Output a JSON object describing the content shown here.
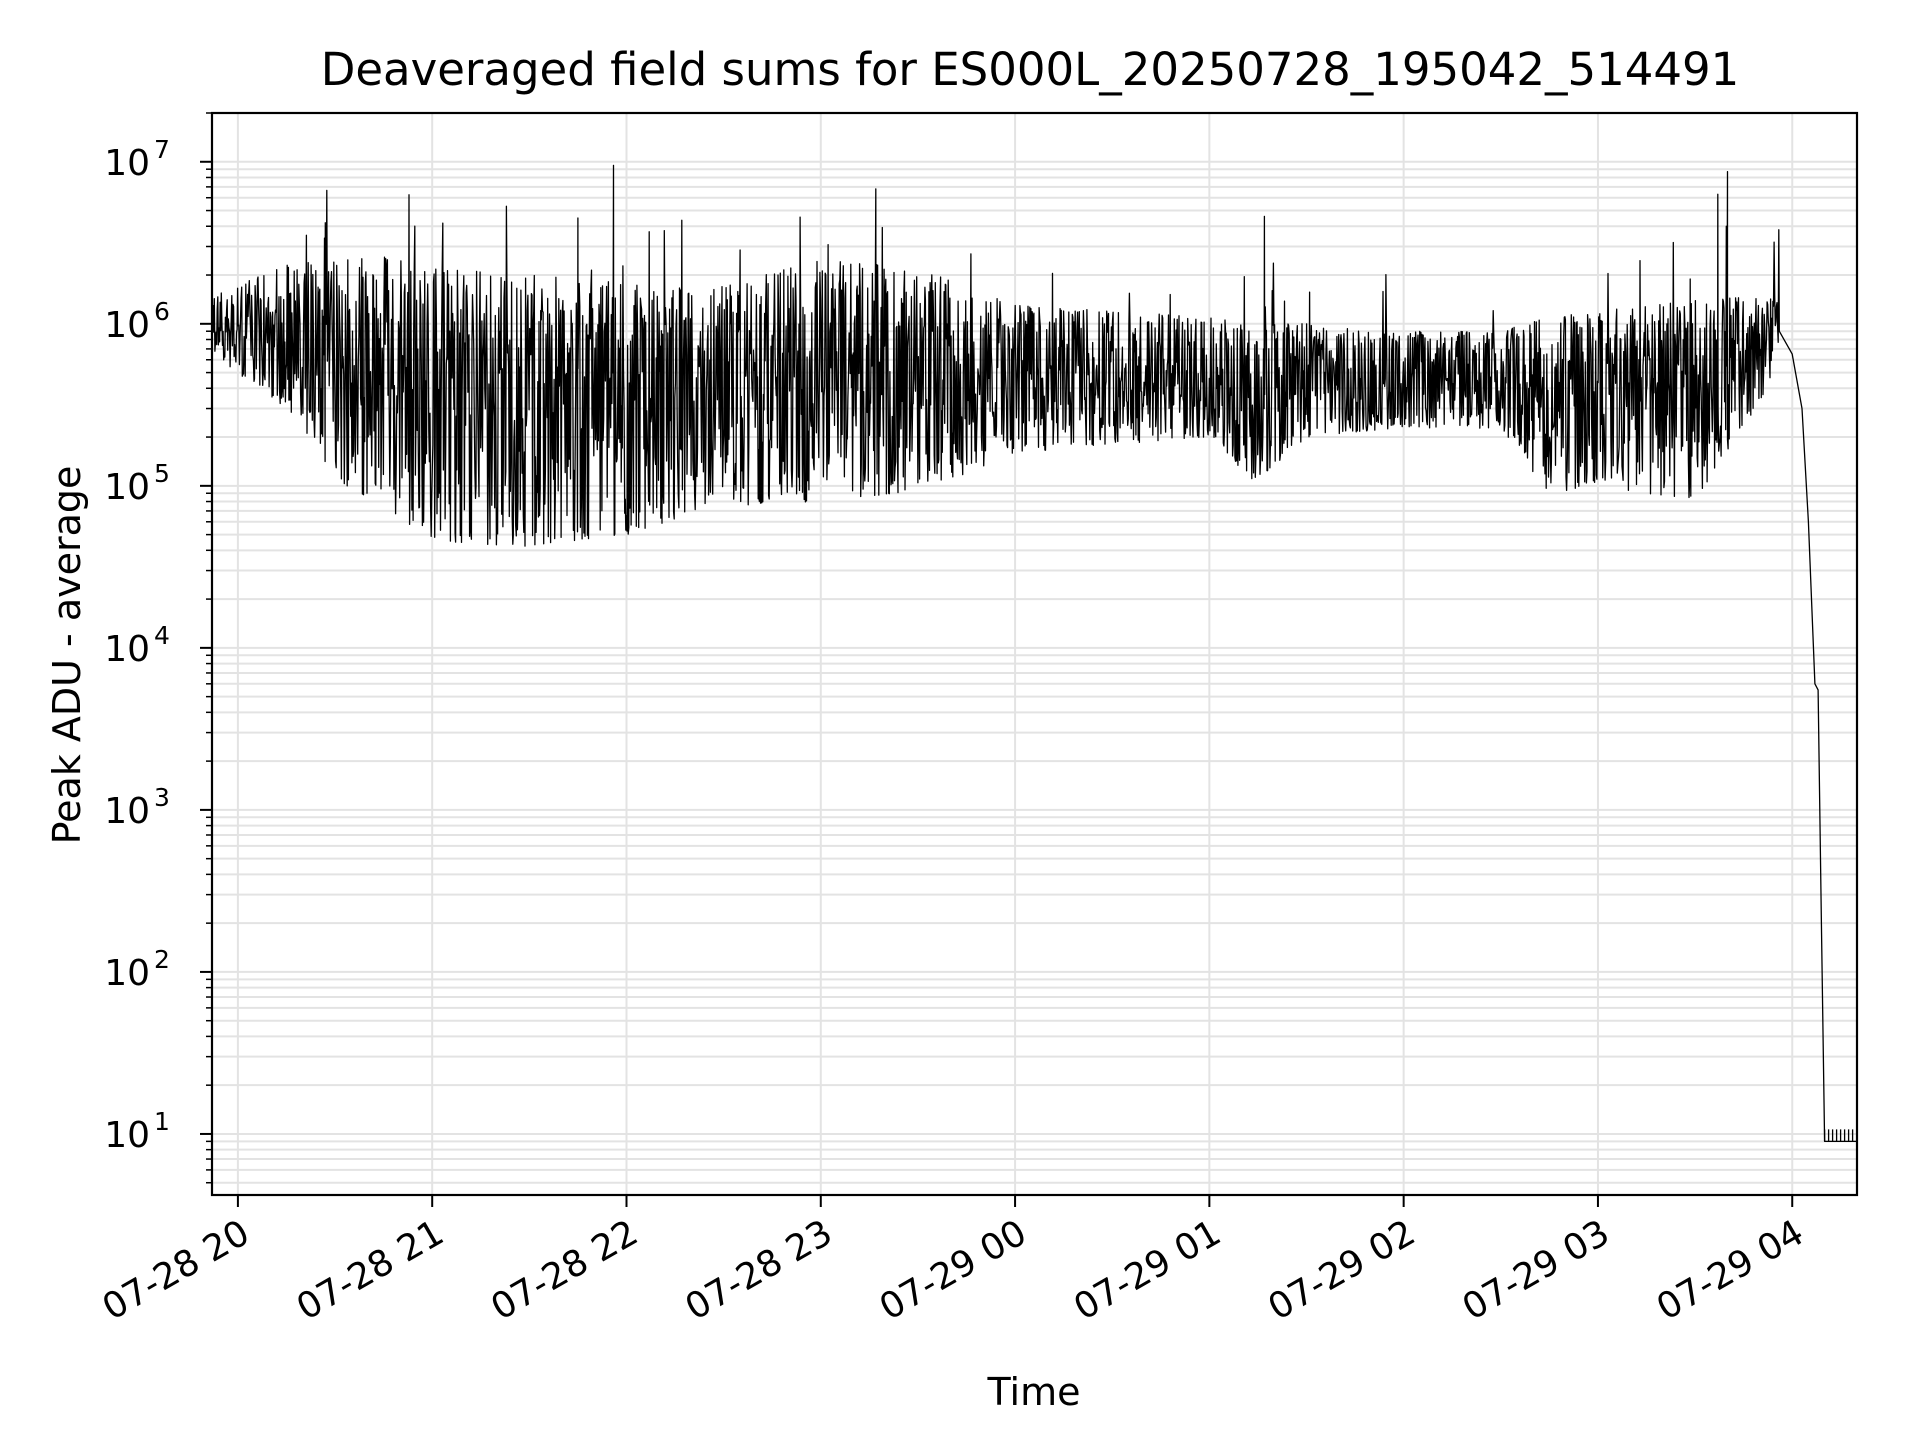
{
  "chart_data": {
    "type": "line",
    "title": "Deaveraged field sums for ES000L_20250728_195042_514491",
    "xlabel": "Time",
    "ylabel": "Peak ADU - average",
    "yscale": "log",
    "xlim": [
      "2025-07-28 19:52",
      "2025-07-29 04:20"
    ],
    "ylim": [
      4.2,
      20000000
    ],
    "x_ticks": [
      {
        "t": "2025-07-28 20:00",
        "label": "07-28 20"
      },
      {
        "t": "2025-07-28 21:00",
        "label": "07-28 21"
      },
      {
        "t": "2025-07-28 22:00",
        "label": "07-28 22"
      },
      {
        "t": "2025-07-28 23:00",
        "label": "07-28 23"
      },
      {
        "t": "2025-07-29 00:00",
        "label": "07-29 00"
      },
      {
        "t": "2025-07-29 01:00",
        "label": "07-29 01"
      },
      {
        "t": "2025-07-29 02:00",
        "label": "07-29 02"
      },
      {
        "t": "2025-07-29 03:00",
        "label": "07-29 03"
      },
      {
        "t": "2025-07-29 04:00",
        "label": "07-29 04"
      }
    ],
    "y_ticks": [
      {
        "value": 10,
        "base": "10",
        "exp": "1"
      },
      {
        "value": 100,
        "base": "10",
        "exp": "2"
      },
      {
        "value": 1000,
        "base": "10",
        "exp": "3"
      },
      {
        "value": 10000,
        "base": "10",
        "exp": "4"
      },
      {
        "value": 100000,
        "base": "10",
        "exp": "5"
      },
      {
        "value": 1000000,
        "base": "10",
        "exp": "6"
      },
      {
        "value": 10000000,
        "base": "10",
        "exp": "7"
      }
    ],
    "grid": true,
    "series": [
      {
        "color": "#000000",
        "x": [
          "2025-07-28 19:52",
          "2025-07-28 20:00",
          "2025-07-28 20:08",
          "2025-07-28 20:15",
          "2025-07-28 20:20",
          "2025-07-28 20:27",
          "2025-07-28 20:33",
          "2025-07-28 20:40",
          "2025-07-28 20:47",
          "2025-07-28 20:53",
          "2025-07-28 21:00",
          "2025-07-28 21:10",
          "2025-07-28 21:20",
          "2025-07-28 21:30",
          "2025-07-28 21:40",
          "2025-07-28 21:50",
          "2025-07-28 22:00",
          "2025-07-28 22:15",
          "2025-07-28 22:30",
          "2025-07-28 22:45",
          "2025-07-28 23:00",
          "2025-07-28 23:07",
          "2025-07-28 23:15",
          "2025-07-28 23:30",
          "2025-07-28 23:45",
          "2025-07-29 00:00",
          "2025-07-29 00:15",
          "2025-07-29 00:30",
          "2025-07-29 00:45",
          "2025-07-29 01:00",
          "2025-07-29 01:13",
          "2025-07-29 01:20",
          "2025-07-29 01:30",
          "2025-07-29 01:45",
          "2025-07-29 02:00",
          "2025-07-29 02:15",
          "2025-07-29 02:30",
          "2025-07-29 02:45",
          "2025-07-29 03:00",
          "2025-07-29 03:15",
          "2025-07-29 03:30",
          "2025-07-29 03:40",
          "2025-07-29 03:50",
          "2025-07-29 03:56",
          "2025-07-29 04:00",
          "2025-07-29 04:03",
          "2025-07-29 04:05",
          "2025-07-29 04:07",
          "2025-07-29 04:08",
          "2025-07-29 04:09",
          "2025-07-29 04:10",
          "2025-07-29 04:14",
          "2025-07-29 04:20"
        ],
        "y": [
          900000,
          850000,
          750000,
          550000,
          450000,
          330000,
          280000,
          220000,
          180000,
          150000,
          120000,
          100000,
          95000,
          110000,
          130000,
          170000,
          220000,
          280000,
          320000,
          330000,
          380000,
          600000,
          700000,
          550000,
          450000,
          380000,
          420000,
          460000,
          420000,
          420000,
          450000,
          480000,
          440000,
          380000,
          370000,
          360000,
          340000,
          250000,
          220000,
          230000,
          260000,
          500000,
          800000,
          900000,
          650000,
          300000,
          60000,
          6000,
          5500,
          200,
          9,
          9,
          9
        ],
        "spikes_max": [
          [
            "2025-07-28 21:56",
            9500000
          ],
          [
            "2025-07-28 23:17",
            6800000
          ],
          [
            "2025-07-29 03:40",
            8700000
          ],
          [
            "2025-07-29 03:37",
            6300000
          ],
          [
            "2025-07-29 01:17",
            4600000
          ],
          [
            "2025-07-28 21:45",
            4500000
          ],
          [
            "2025-07-28 20:27",
            4200000
          ]
        ],
        "envelope": {
          "x": [
            "2025-07-28 19:52",
            "2025-07-28 20:15",
            "2025-07-28 20:30",
            "2025-07-28 20:45",
            "2025-07-28 21:00",
            "2025-07-28 21:30",
            "2025-07-28 22:00",
            "2025-07-28 22:30",
            "2025-07-28 23:00",
            "2025-07-28 23:30",
            "2025-07-29 00:00",
            "2025-07-29 00:30",
            "2025-07-29 01:00",
            "2025-07-29 01:15",
            "2025-07-29 01:30",
            "2025-07-29 02:00",
            "2025-07-29 02:30",
            "2025-07-29 02:45",
            "2025-07-29 03:00",
            "2025-07-29 03:30",
            "2025-07-29 03:56"
          ],
          "upper": [
            1500000,
            2300000,
            2500000,
            2600000,
            2200000,
            2000000,
            1800000,
            1700000,
            2500000,
            2200000,
            1300000,
            1200000,
            1100000,
            1000000,
            1000000,
            900000,
            900000,
            1100000,
            1200000,
            1400000,
            1500000
          ],
          "lower": [
            650000,
            300000,
            110000,
            75000,
            45000,
            42000,
            50000,
            75000,
            80000,
            90000,
            160000,
            180000,
            200000,
            100000,
            200000,
            230000,
            220000,
            90000,
            100000,
            80000,
            500000
          ]
        }
      }
    ]
  }
}
